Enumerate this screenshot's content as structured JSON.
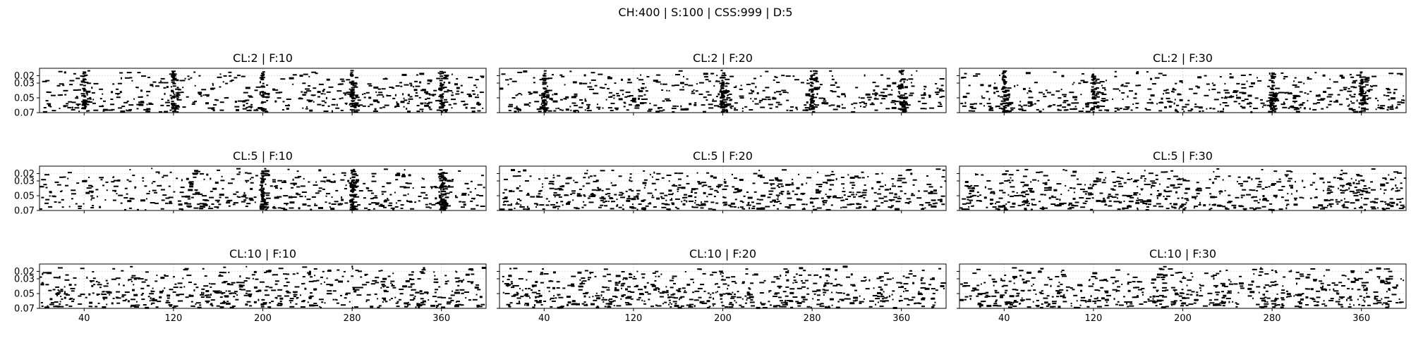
{
  "figure_title": "CH:400 | S:100 | CSS:999 | D:5",
  "chart_data": [
    {
      "type": "raster",
      "title": "CL:2 | F:10",
      "xlim": [
        0,
        400
      ],
      "ylim": [
        0.07,
        0.01
      ],
      "x_ticks": [
        40,
        120,
        200,
        280,
        360
      ],
      "y_ticks": [
        0.02,
        0.03,
        0.05,
        0.07
      ],
      "grid": true,
      "vertical_bands": [
        40,
        120,
        200,
        280,
        360
      ],
      "mark_color": "#000000"
    },
    {
      "type": "raster",
      "title": "CL:2 | F:20",
      "xlim": [
        0,
        400
      ],
      "ylim": [
        0.07,
        0.01
      ],
      "x_ticks": [
        40,
        120,
        200,
        280,
        360
      ],
      "y_ticks": [
        0.02,
        0.03,
        0.05,
        0.07
      ],
      "grid": true,
      "vertical_bands": [
        40,
        200,
        280,
        360
      ],
      "mark_color": "#000000"
    },
    {
      "type": "raster",
      "title": "CL:2 | F:30",
      "xlim": [
        0,
        400
      ],
      "ylim": [
        0.07,
        0.01
      ],
      "x_ticks": [
        40,
        120,
        200,
        280,
        360
      ],
      "y_ticks": [
        0.02,
        0.03,
        0.05,
        0.07
      ],
      "grid": true,
      "vertical_bands": [
        40,
        120,
        280,
        360
      ],
      "mark_color": "#000000"
    },
    {
      "type": "raster",
      "title": "CL:5 | F:10",
      "xlim": [
        0,
        400
      ],
      "ylim": [
        0.07,
        0.01
      ],
      "x_ticks": [
        40,
        120,
        200,
        280,
        360
      ],
      "y_ticks": [
        0.02,
        0.03,
        0.05,
        0.07
      ],
      "grid": true,
      "vertical_bands": [
        200,
        280,
        360
      ],
      "mark_color": "#000000"
    },
    {
      "type": "raster",
      "title": "CL:5 | F:20",
      "xlim": [
        0,
        400
      ],
      "ylim": [
        0.07,
        0.01
      ],
      "x_ticks": [
        40,
        120,
        200,
        280,
        360
      ],
      "y_ticks": [
        0.02,
        0.03,
        0.05,
        0.07
      ],
      "grid": true,
      "vertical_bands": [],
      "mark_color": "#000000"
    },
    {
      "type": "raster",
      "title": "CL:5 | F:30",
      "xlim": [
        0,
        400
      ],
      "ylim": [
        0.07,
        0.01
      ],
      "x_ticks": [
        40,
        120,
        200,
        280,
        360
      ],
      "y_ticks": [
        0.02,
        0.03,
        0.05,
        0.07
      ],
      "grid": true,
      "vertical_bands": [],
      "mark_color": "#000000"
    },
    {
      "type": "raster",
      "title": "CL:10 | F:10",
      "xlim": [
        0,
        400
      ],
      "ylim": [
        0.07,
        0.01
      ],
      "x_ticks": [
        40,
        120,
        200,
        280,
        360
      ],
      "y_ticks": [
        0.02,
        0.03,
        0.05,
        0.07
      ],
      "grid": true,
      "vertical_bands": [],
      "mark_color": "#000000"
    },
    {
      "type": "raster",
      "title": "CL:10 | F:20",
      "xlim": [
        0,
        400
      ],
      "ylim": [
        0.07,
        0.01
      ],
      "x_ticks": [
        40,
        120,
        200,
        280,
        360
      ],
      "y_ticks": [
        0.02,
        0.03,
        0.05,
        0.07
      ],
      "grid": true,
      "vertical_bands": [],
      "mark_color": "#000000"
    },
    {
      "type": "raster",
      "title": "CL:10 | F:30",
      "xlim": [
        0,
        400
      ],
      "ylim": [
        0.07,
        0.01
      ],
      "x_ticks": [
        40,
        120,
        200,
        280,
        360
      ],
      "y_ticks": [
        0.02,
        0.03,
        0.05,
        0.07
      ],
      "grid": true,
      "vertical_bands": [],
      "mark_color": "#000000"
    }
  ]
}
